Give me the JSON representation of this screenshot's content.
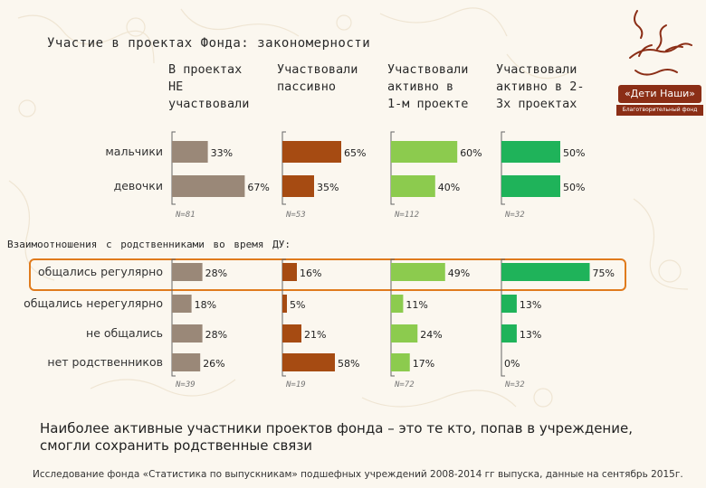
{
  "title": "Участие в проектах Фонда: закономерности",
  "columns": [
    {
      "label": "В проектах\nНЕ\nучаствовали",
      "color": "#9a8878"
    },
    {
      "label": "Участвовали\nпассивно",
      "color": "#a64b12"
    },
    {
      "label": "Участвовали\nактивно в\n1-м проекте",
      "color": "#8ccb4e"
    },
    {
      "label": "Участвовали\nактивно в 2-\n3х проектах",
      "color": "#1fb35a"
    }
  ],
  "section_title": "Взаимоотношения с родственниками во время ДУ:",
  "conclusion": "Наиболее активные участники проектов фонда – это те кто, попав в учреждение, смогли сохранить родственные связи",
  "footnote": "Исследование фонда «Статистика по выпускникам» подшефных учреждений 2008-2014 гг выпуска, данные на сентябрь 2015г.",
  "logo": {
    "badge": "«Дети Наши»",
    "subtitle": "Благотворительный фонд"
  },
  "chart_data": [
    {
      "type": "bar",
      "orientation": "horizontal",
      "categories": [
        "мальчики",
        "девочки"
      ],
      "series": [
        {
          "name": "В проектах НЕ участвовали",
          "values": [
            33,
            67
          ],
          "n": "N=81"
        },
        {
          "name": "Участвовали пассивно",
          "values": [
            65,
            35
          ],
          "n": "N=53"
        },
        {
          "name": "Участвовали активно в 1-м проекте",
          "values": [
            60,
            40
          ],
          "n": "N=112"
        },
        {
          "name": "Участвовали активно в 2-3х проектах",
          "values": [
            50,
            50
          ],
          "n": "N=32"
        }
      ],
      "value_suffix": "%"
    },
    {
      "type": "bar",
      "orientation": "horizontal",
      "title": "Взаимоотношения с родственниками во время ДУ:",
      "categories": [
        "общались регулярно",
        "общались нерегулярно",
        "не общались",
        "нет родственников"
      ],
      "series": [
        {
          "name": "В проектах НЕ участвовали",
          "values": [
            28,
            18,
            28,
            26
          ],
          "n": "N=39"
        },
        {
          "name": "Участвовали пассивно",
          "values": [
            16,
            5,
            21,
            58
          ],
          "n": "N=19"
        },
        {
          "name": "Участвовали активно в 1-м проекте",
          "values": [
            49,
            11,
            24,
            17
          ],
          "n": "N=72"
        },
        {
          "name": "Участвовали активно в 2-3х проектах",
          "values": [
            75,
            13,
            13,
            0
          ],
          "n": "N=32"
        }
      ],
      "highlighted_category": "общались регулярно",
      "value_suffix": "%"
    }
  ]
}
